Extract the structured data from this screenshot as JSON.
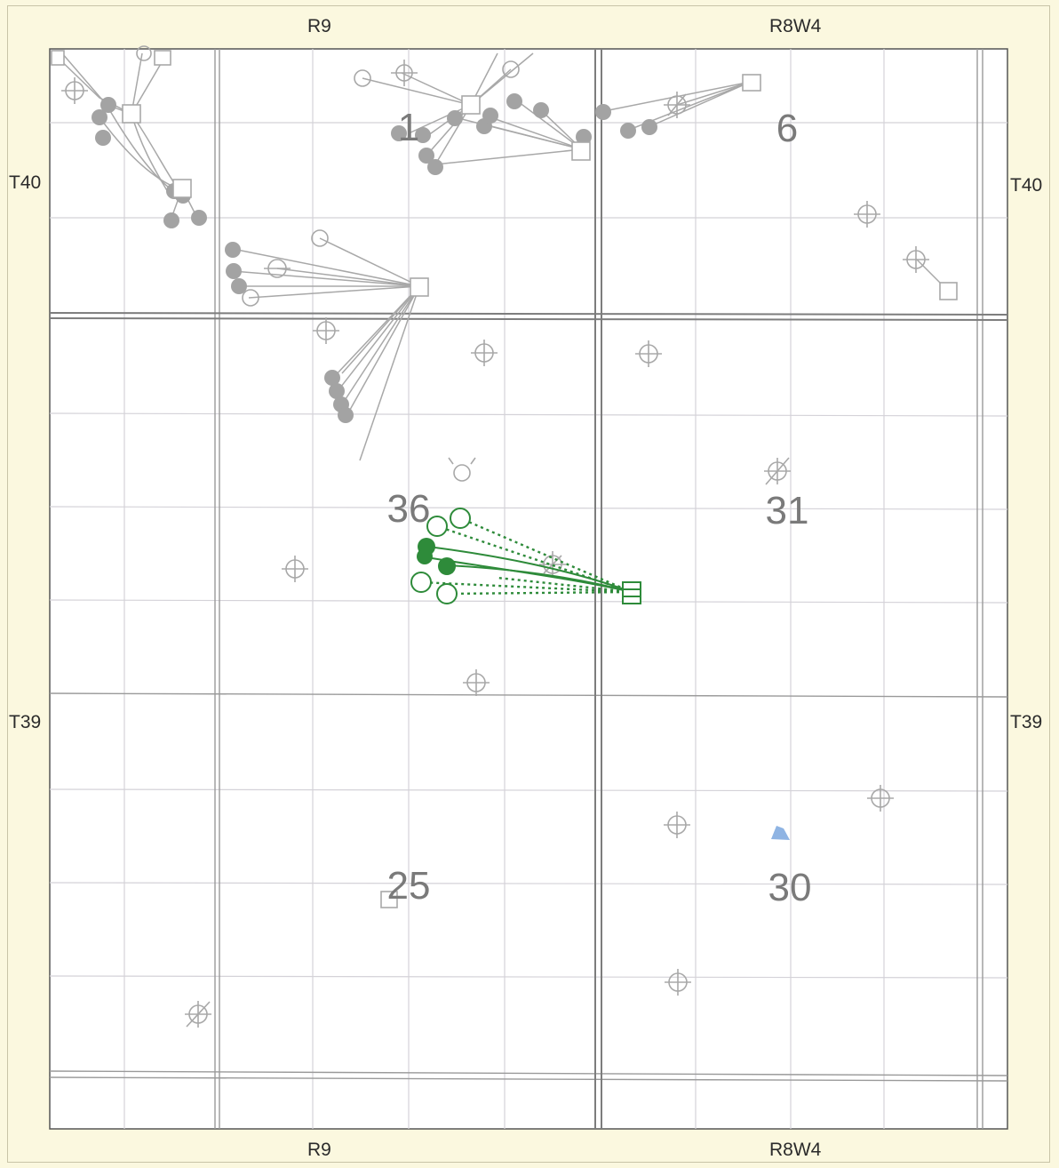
{
  "range_labels": {
    "top_left": "R9",
    "top_right": "R8W4",
    "bottom_left": "R9",
    "bottom_right": "R8W4"
  },
  "township_labels": {
    "left_upper": "T40",
    "right_upper": "T40",
    "left_lower": "T39",
    "right_lower": "T39"
  },
  "sections": [
    {
      "id": "section-1",
      "label": "1"
    },
    {
      "id": "section-6",
      "label": "6"
    },
    {
      "id": "section-36",
      "label": "36"
    },
    {
      "id": "section-31",
      "label": "31"
    },
    {
      "id": "section-25",
      "label": "25"
    },
    {
      "id": "section-30",
      "label": "30"
    }
  ],
  "colors": {
    "frame_background": "#fbf8df",
    "map_background": "#ffffff",
    "grid_line": "#cfcfd4",
    "township_line": "#8c8c8c",
    "well_gray": "#a8a8a8",
    "well_green": "#2e8b3a",
    "water_blue": "#8fb4e3"
  },
  "legend": {
    "highlighted_wells": "green",
    "other_wells": "gray"
  }
}
